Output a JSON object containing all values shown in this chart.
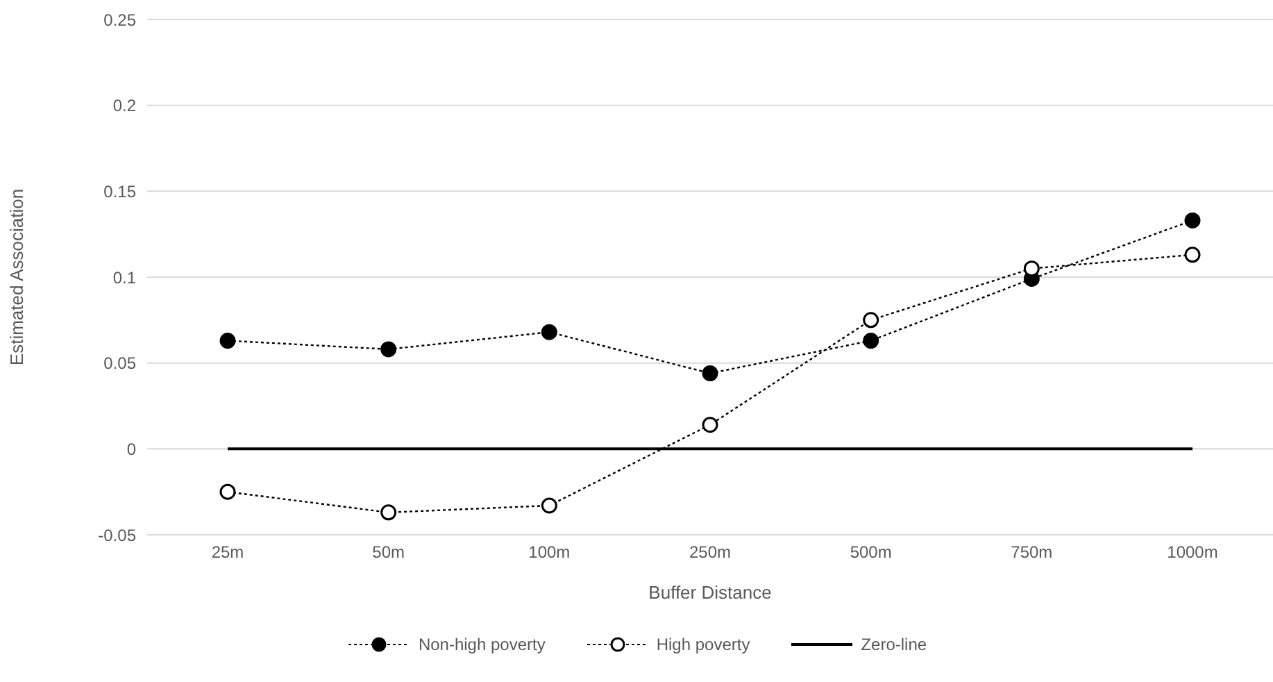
{
  "chart_data": {
    "type": "line",
    "xlabel": "Buffer Distance",
    "ylabel": "Estimated Association",
    "categories": [
      "25m",
      "50m",
      "100m",
      "250m",
      "500m",
      "750m",
      "1000m"
    ],
    "series": [
      {
        "name": "Non-high poverty",
        "color": "#000000",
        "values": [
          0.063,
          0.058,
          0.068,
          0.044,
          0.063,
          0.099,
          0.133
        ],
        "line_style": "dotted",
        "marker": "circle"
      },
      {
        "name": "High poverty",
        "color": "#000000",
        "values": [
          -0.025,
          -0.037,
          -0.033,
          0.014,
          0.075,
          0.105,
          0.113
        ],
        "line_style": "dotted",
        "marker": "circle_open"
      },
      {
        "name": "Zero-line",
        "color": "#000000",
        "values": [
          0,
          0,
          0,
          0,
          0,
          0,
          0
        ],
        "line_style": "solid",
        "marker": "none"
      }
    ],
    "ylim": [
      -0.05,
      0.25
    ],
    "yticks": [
      -0.05,
      0,
      0.05,
      0.1,
      0.15,
      0.2,
      0.25
    ],
    "grid": "y",
    "legend": "bottom"
  }
}
